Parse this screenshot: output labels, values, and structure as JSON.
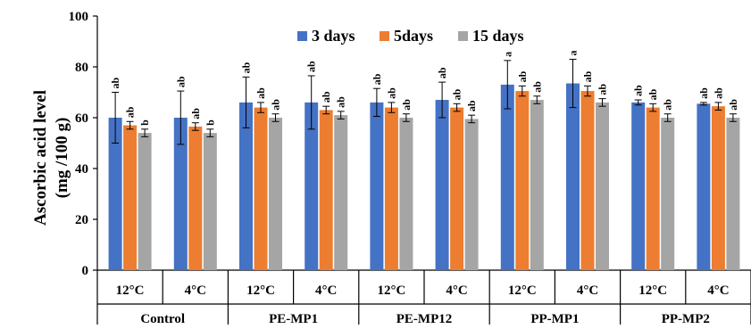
{
  "chart_data": {
    "type": "bar",
    "ylabel": "Ascorbic acid level",
    "ylabel_unit": "(mg /100 g)",
    "ylim": [
      0,
      100
    ],
    "yticks": [
      "0",
      "20",
      "40",
      "60",
      "80",
      "100"
    ],
    "grid": false,
    "legend_position": "top",
    "groups": [
      {
        "label": "Control",
        "categories": [
          "12°C",
          "4°C"
        ]
      },
      {
        "label": "PE-MP1",
        "categories": [
          "12°C",
          "4°C"
        ]
      },
      {
        "label": "PE-MP12",
        "categories": [
          "12°C",
          "4°C"
        ]
      },
      {
        "label": "PP-MP1",
        "categories": [
          "12°C",
          "4°C"
        ]
      },
      {
        "label": "PP-MP2",
        "categories": [
          "12°C",
          "4°C"
        ]
      }
    ],
    "series": [
      {
        "name": "3 days",
        "color": "#4472C4",
        "values": [
          60,
          60,
          66,
          66,
          66,
          67,
          73,
          73.5,
          66,
          65.5
        ],
        "errors": [
          10,
          10.5,
          10,
          10.5,
          5.5,
          7,
          9.5,
          9.5,
          1,
          0.5
        ],
        "labels": [
          "ab",
          "ab",
          "ab",
          "ab",
          "ab",
          "ab",
          "a",
          "a",
          "ab",
          "ab"
        ]
      },
      {
        "name": "5days",
        "color": "#ED7D31",
        "values": [
          57,
          56.5,
          64,
          63,
          64,
          64,
          70.5,
          70.5,
          64,
          64.5
        ],
        "errors": [
          1.5,
          1.5,
          2,
          1.5,
          2,
          1.5,
          2,
          2,
          1.5,
          1.5
        ],
        "labels": [
          "ab",
          "ab",
          "ab",
          "ab",
          "ab",
          "ab",
          "ab",
          "ab",
          "ab",
          "ab"
        ]
      },
      {
        "name": "15 days",
        "color": "#A5A5A5",
        "values": [
          54,
          54,
          60,
          61,
          60,
          59.5,
          67,
          66,
          60,
          60
        ],
        "errors": [
          1.5,
          1.5,
          1.5,
          1.5,
          1.5,
          1.5,
          1.5,
          1.5,
          1.5,
          1.5
        ],
        "labels": [
          "b",
          "b",
          "ab",
          "ab",
          "ab",
          "ab",
          "ab",
          "ab",
          "ab",
          "ab"
        ]
      }
    ]
  }
}
